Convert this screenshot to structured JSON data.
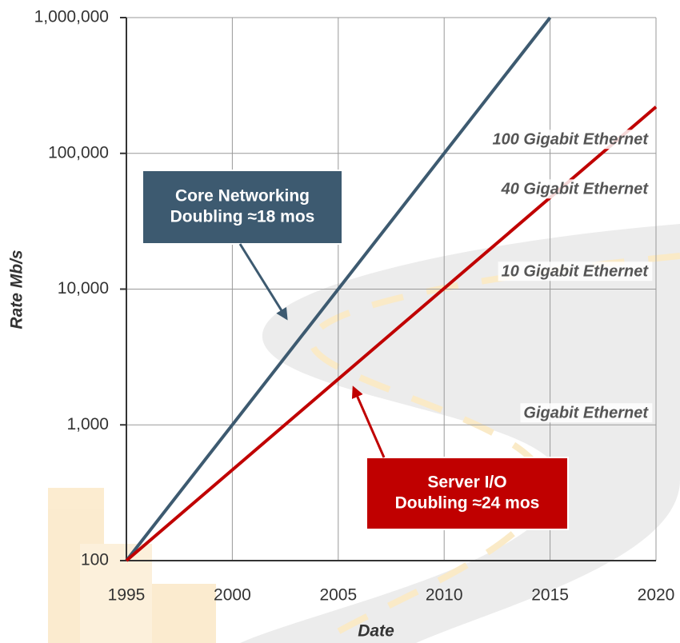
{
  "chart_data": {
    "type": "line",
    "xlabel": "Date",
    "ylabel": "Rate Mb/s",
    "xlim": [
      1995,
      2020
    ],
    "xticks": [
      1995,
      2000,
      2005,
      2010,
      2015,
      2020
    ],
    "ylim": [
      100,
      1000000
    ],
    "yticks": [
      100,
      {
        "value": 1000,
        "label": "1,000"
      },
      {
        "value": 10000,
        "label": "10,000"
      },
      {
        "value": 100000,
        "label": "100,000"
      },
      {
        "value": 1000000,
        "label": "1,000,000"
      }
    ],
    "log_y": true,
    "grid": true,
    "series": [
      {
        "name": "Core Networking",
        "color": "#3d5a70",
        "x": [
          1995,
          2015
        ],
        "values": [
          100,
          1000000
        ]
      },
      {
        "name": "Server I/O",
        "color": "#c00000",
        "x": [
          1995,
          2020
        ],
        "values": [
          100,
          220000
        ]
      }
    ],
    "labels": [
      "100 Gigabit Ethernet",
      "40 Gigabit Ethernet",
      "10 Gigabit Ethernet",
      "Gigabit Ethernet"
    ],
    "callouts": [
      {
        "lines": [
          "Core Networking",
          "Doubling ≈18 mos"
        ],
        "color": "#3d5a70"
      },
      {
        "lines": [
          "Server I/O",
          "Doubling ≈24 mos"
        ],
        "color": "#c00000"
      }
    ]
  }
}
